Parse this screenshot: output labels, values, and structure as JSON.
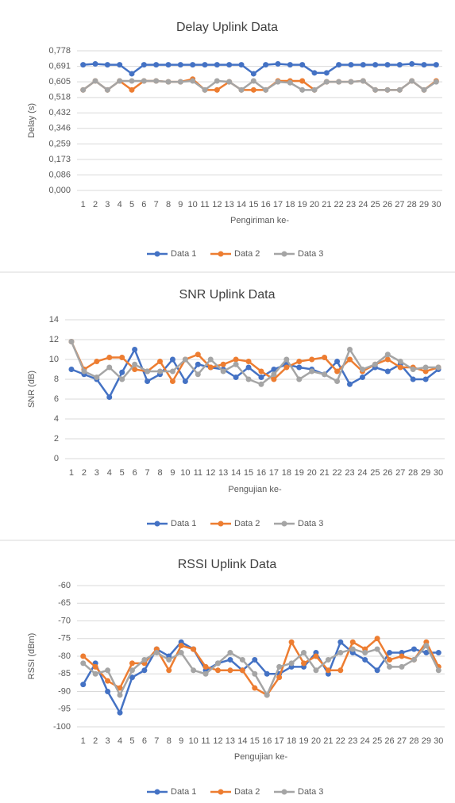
{
  "chart_data": [
    {
      "type": "line",
      "title": "Delay Uplink Data",
      "x_label": "Pengiriman ke-",
      "y_label": "Delay (s)",
      "categories": [
        "1",
        "2",
        "3",
        "4",
        "5",
        "6",
        "7",
        "8",
        "9",
        "10",
        "11",
        "12",
        "13",
        "14",
        "15",
        "16",
        "17",
        "18",
        "19",
        "20",
        "21",
        "22",
        "23",
        "24",
        "25",
        "26",
        "27",
        "28",
        "29",
        "30"
      ],
      "ylim": [
        0,
        0.778
      ],
      "yticks": [
        {
          "value": 0,
          "label": "0,000"
        },
        {
          "value": 0.086,
          "label": "0,086"
        },
        {
          "value": 0.173,
          "label": "0,173"
        },
        {
          "value": 0.259,
          "label": "0,259"
        },
        {
          "value": 0.346,
          "label": "0,346"
        },
        {
          "value": 0.432,
          "label": "0,432"
        },
        {
          "value": 0.518,
          "label": "0,518"
        },
        {
          "value": 0.605,
          "label": "0,605"
        },
        {
          "value": 0.691,
          "label": "0,691"
        },
        {
          "value": 0.778,
          "label": "0,778"
        }
      ],
      "grid": true,
      "legend": "bottom",
      "series": [
        {
          "name": "Data 1",
          "color": "#4472c4",
          "values": [
            0.7,
            0.705,
            0.7,
            0.7,
            0.65,
            0.7,
            0.7,
            0.7,
            0.7,
            0.7,
            0.7,
            0.7,
            0.7,
            0.7,
            0.65,
            0.7,
            0.705,
            0.7,
            0.7,
            0.655,
            0.655,
            0.7,
            0.7,
            0.7,
            0.7,
            0.7,
            0.7,
            0.705,
            0.7,
            0.7
          ]
        },
        {
          "name": "Data 2",
          "color": "#ed7d31",
          "values": [
            0.56,
            0.61,
            0.56,
            0.61,
            0.56,
            0.61,
            0.61,
            0.605,
            0.605,
            0.62,
            0.56,
            0.56,
            0.605,
            0.56,
            0.56,
            0.56,
            0.61,
            0.61,
            0.61,
            0.56,
            0.605,
            0.605,
            0.605,
            0.61,
            0.56,
            0.56,
            0.56,
            0.61,
            0.56,
            0.61
          ]
        },
        {
          "name": "Data 3",
          "color": "#a5a5a5",
          "values": [
            0.56,
            0.61,
            0.56,
            0.61,
            0.61,
            0.61,
            0.61,
            0.605,
            0.605,
            0.61,
            0.56,
            0.61,
            0.605,
            0.56,
            0.61,
            0.56,
            0.605,
            0.6,
            0.56,
            0.56,
            0.605,
            0.605,
            0.605,
            0.61,
            0.56,
            0.56,
            0.56,
            0.61,
            0.56,
            0.605
          ]
        }
      ]
    },
    {
      "type": "line",
      "title": "SNR Uplink Data",
      "x_label": "Pengujian ke-",
      "y_label": "SNR (dB)",
      "categories": [
        "1",
        "2",
        "3",
        "4",
        "5",
        "6",
        "7",
        "8",
        "9",
        "10",
        "11",
        "12",
        "13",
        "14",
        "15",
        "16",
        "17",
        "18",
        "19",
        "20",
        "21",
        "22",
        "23",
        "24",
        "25",
        "26",
        "27",
        "28",
        "29",
        "30"
      ],
      "ylim": [
        0,
        14
      ],
      "yticks": [
        0,
        2,
        4,
        6,
        8,
        10,
        12,
        14
      ],
      "grid": true,
      "legend": "bottom",
      "series": [
        {
          "name": "Data 1",
          "color": "#4472c4",
          "values": [
            9,
            8.5,
            8,
            6.2,
            8.7,
            11,
            7.8,
            8.5,
            10,
            7.8,
            9.5,
            9.2,
            9,
            8.2,
            9.2,
            8.2,
            9,
            9.5,
            9.2,
            9,
            8.5,
            9.8,
            7.5,
            8.2,
            9.2,
            8.8,
            9.5,
            8,
            8,
            9
          ]
        },
        {
          "name": "Data 2",
          "color": "#ed7d31",
          "values": [
            11.8,
            9,
            9.8,
            10.2,
            10.2,
            9,
            8.8,
            9.8,
            7.8,
            10,
            10.5,
            9.2,
            9.5,
            10,
            9.8,
            8.8,
            8,
            9.2,
            9.8,
            10,
            10.2,
            8.8,
            10,
            8.8,
            9.5,
            10,
            9.2,
            9.2,
            8.8,
            9.2
          ]
        },
        {
          "name": "Data 3",
          "color": "#a5a5a5",
          "values": [
            11.8,
            8.8,
            8.2,
            9.2,
            8,
            9.5,
            8.8,
            8.8,
            8.8,
            10,
            8.5,
            10,
            8.8,
            9.5,
            8,
            7.5,
            8.5,
            10,
            8,
            8.8,
            8.5,
            7.8,
            11,
            9,
            9.5,
            10.5,
            9.8,
            9,
            9.2,
            9.2
          ]
        }
      ]
    },
    {
      "type": "line",
      "title": "RSSI Uplink Data",
      "x_label": "Pengujian ke-",
      "y_label": "RSSI (dBm)",
      "categories": [
        "1",
        "2",
        "3",
        "4",
        "5",
        "6",
        "7",
        "8",
        "9",
        "10",
        "11",
        "12",
        "13",
        "14",
        "15",
        "16",
        "17",
        "18",
        "19",
        "20",
        "21",
        "22",
        "23",
        "24",
        "25",
        "26",
        "27",
        "28",
        "29",
        "30"
      ],
      "ylim": [
        -100,
        -60
      ],
      "yticks": [
        -100,
        -95,
        -90,
        -85,
        -80,
        -75,
        -70,
        -65,
        -60
      ],
      "grid": true,
      "legend": "bottom",
      "series": [
        {
          "name": "Data 1",
          "color": "#4472c4",
          "values": [
            -88,
            -82,
            -90,
            -96,
            -86,
            -84,
            -78,
            -80,
            -76,
            -78,
            -84,
            -82,
            -81,
            -84,
            -81,
            -85,
            -85,
            -83,
            -83,
            -79,
            -85,
            -76,
            -79,
            -81,
            -84,
            -79,
            -79,
            -78,
            -79,
            -79
          ]
        },
        {
          "name": "Data 2",
          "color": "#ed7d31",
          "values": [
            -80,
            -83,
            -87,
            -89,
            -82,
            -82,
            -78,
            -84,
            -77,
            -78,
            -83,
            -84,
            -84,
            -84,
            -89,
            -91,
            -86,
            -76,
            -82,
            -80,
            -84,
            -84,
            -76,
            -78,
            -75,
            -81,
            -80,
            -81,
            -76,
            -83
          ]
        },
        {
          "name": "Data 3",
          "color": "#a5a5a5",
          "values": [
            -82,
            -85,
            -84,
            -91,
            -84,
            -81,
            -79,
            -81,
            -79,
            -84,
            -85,
            -82,
            -79,
            -81,
            -85,
            -91,
            -83,
            -82,
            -79,
            -84,
            -81,
            -79,
            -78,
            -79,
            -78,
            -83,
            -83,
            -81,
            -77,
            -84
          ]
        }
      ]
    }
  ]
}
